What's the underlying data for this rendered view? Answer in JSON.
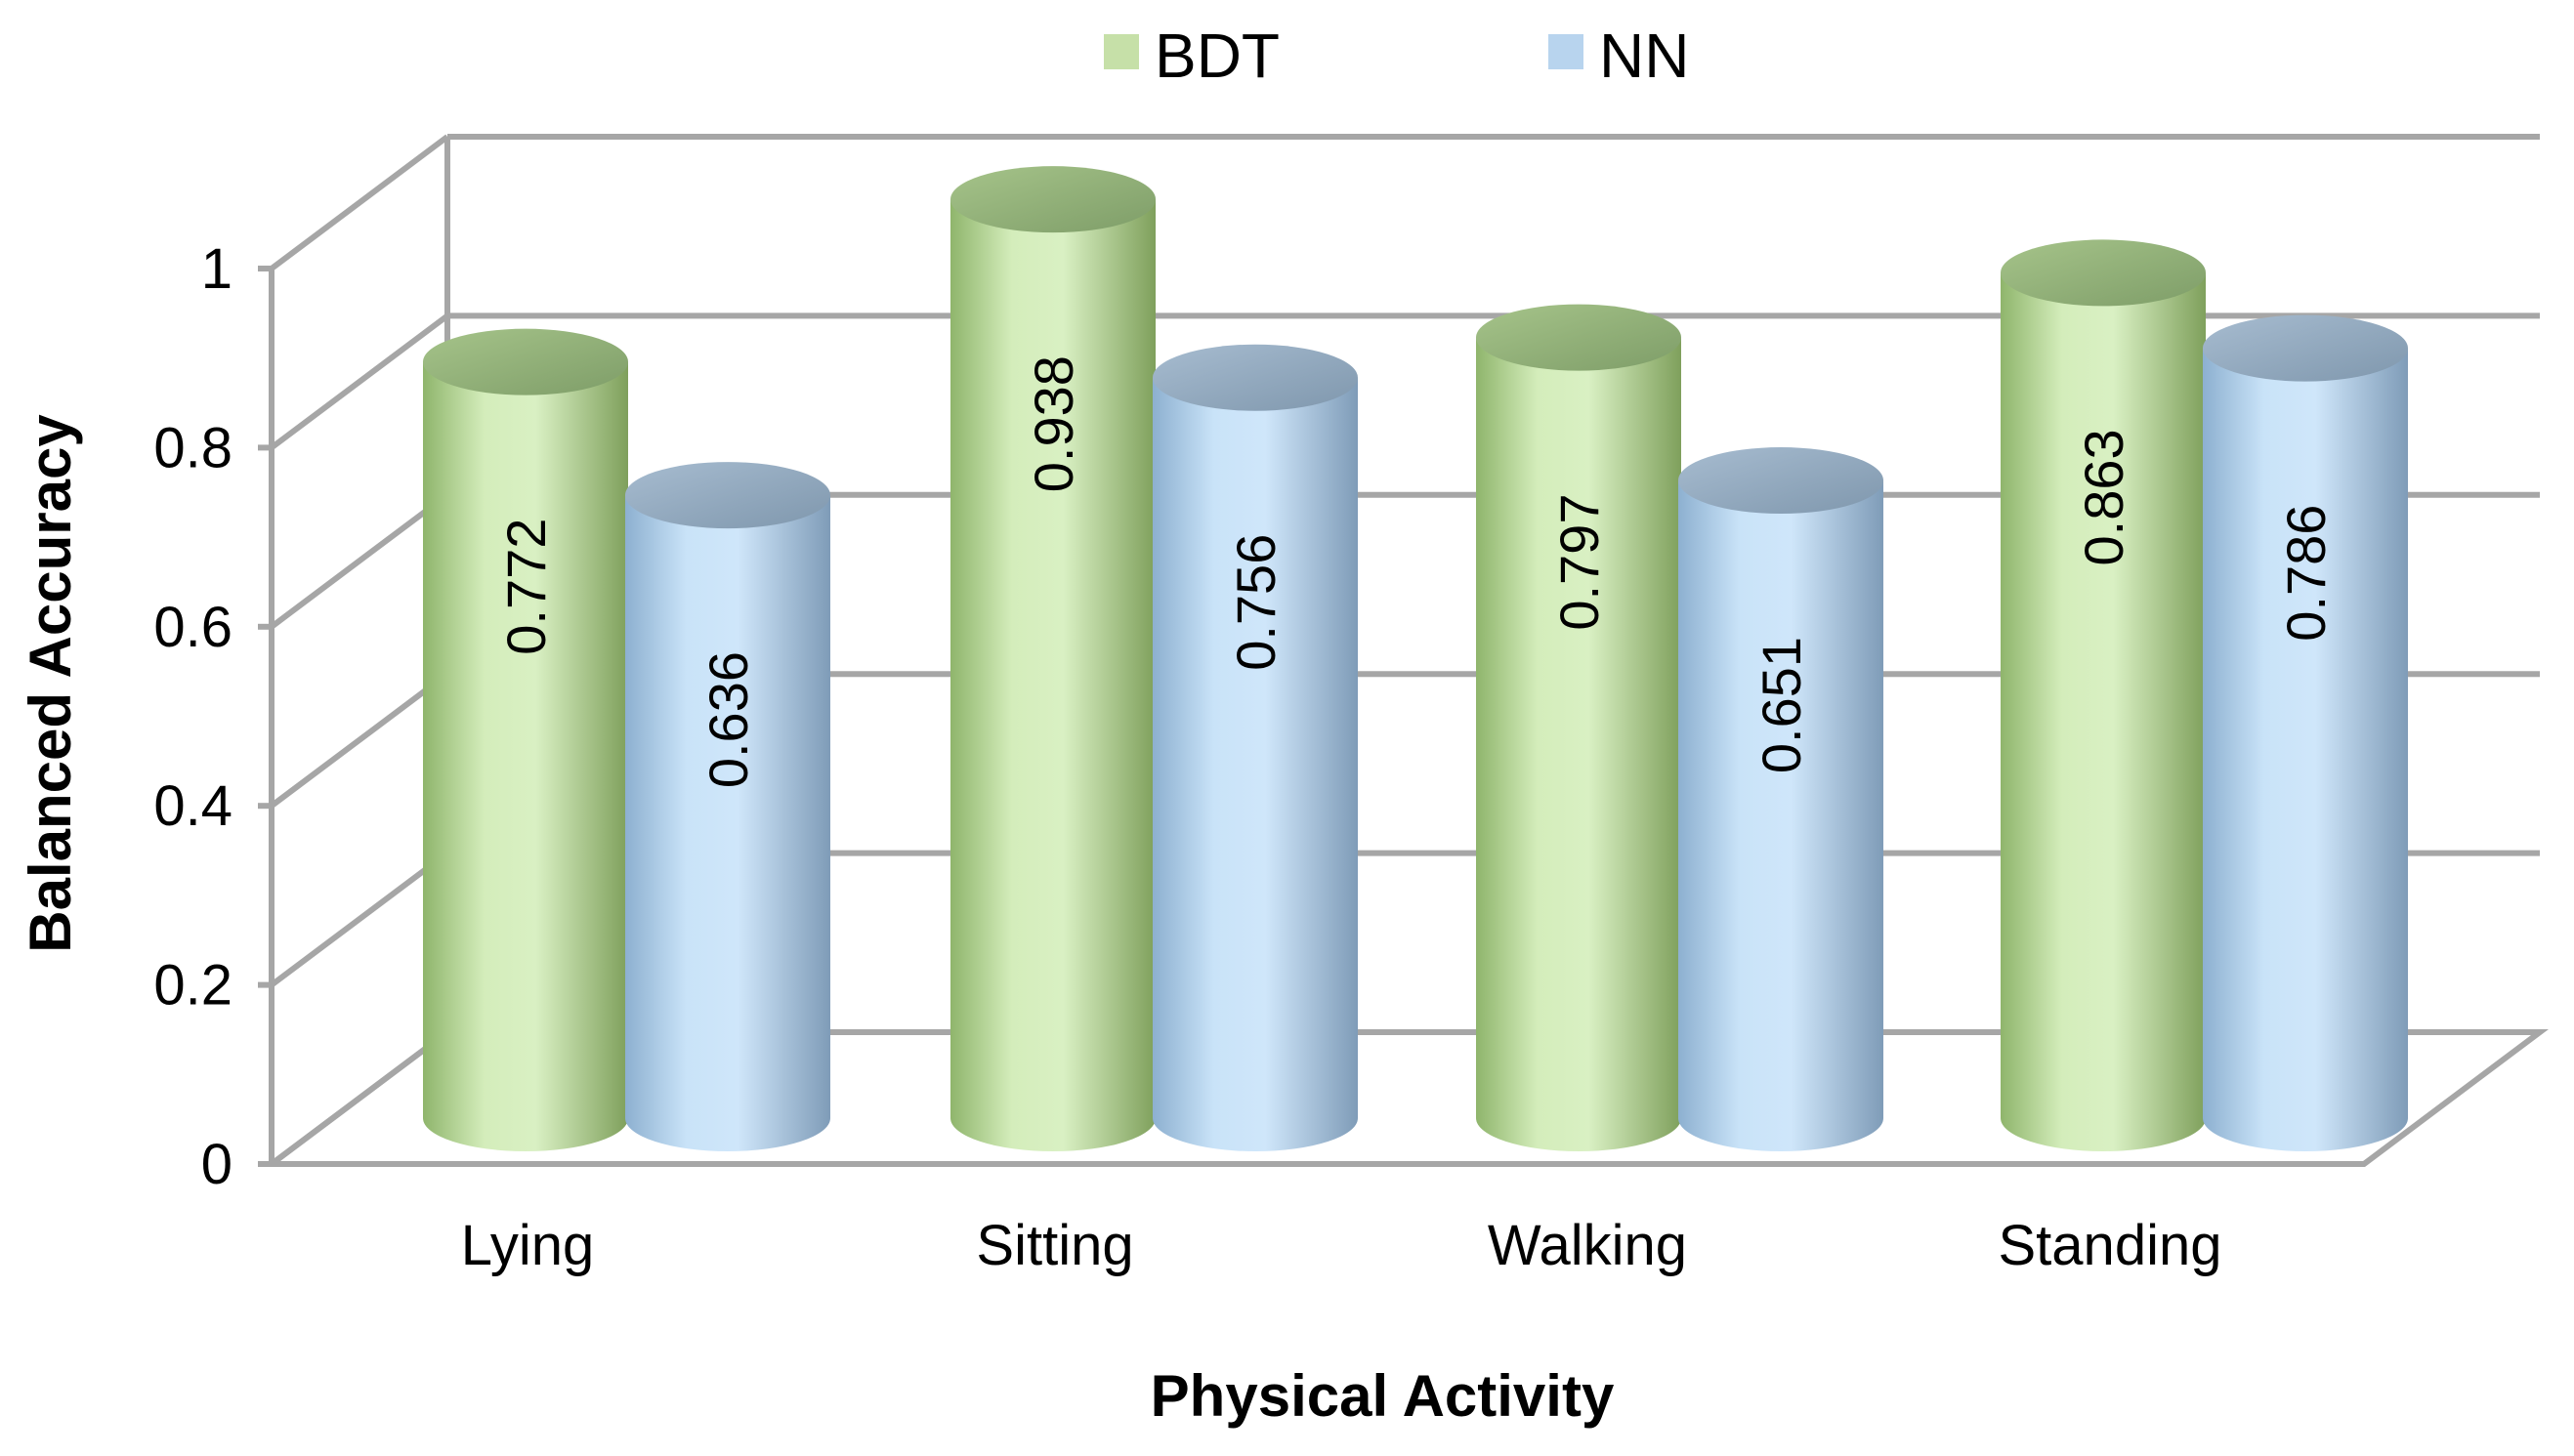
{
  "chart_data": {
    "type": "bar",
    "style": "3d-cylinder",
    "categories": [
      "Lying",
      "Sitting",
      "Walking",
      "Standing"
    ],
    "series": [
      {
        "name": "BDT",
        "values": [
          0.772,
          0.938,
          0.797,
          0.863
        ],
        "labels": [
          "0.772",
          "0.938",
          "0.797",
          "0.863"
        ]
      },
      {
        "name": "NN",
        "values": [
          0.636,
          0.756,
          0.651,
          0.786
        ],
        "labels": [
          "0.636",
          "0.756",
          "0.651",
          "0.786"
        ]
      }
    ],
    "title": "",
    "xlabel": "Physical Activity",
    "ylabel": "Balanced Accuracy",
    "ylim": [
      0,
      1
    ],
    "yticks": [
      "0",
      "0.2",
      "0.4",
      "0.6",
      "0.8",
      "1"
    ],
    "grid": true,
    "legend_position": "top-center",
    "colors": {
      "BDT": "#c6e0a8",
      "NN": "#b8d4ee",
      "grid": "#a6a6a6"
    }
  }
}
